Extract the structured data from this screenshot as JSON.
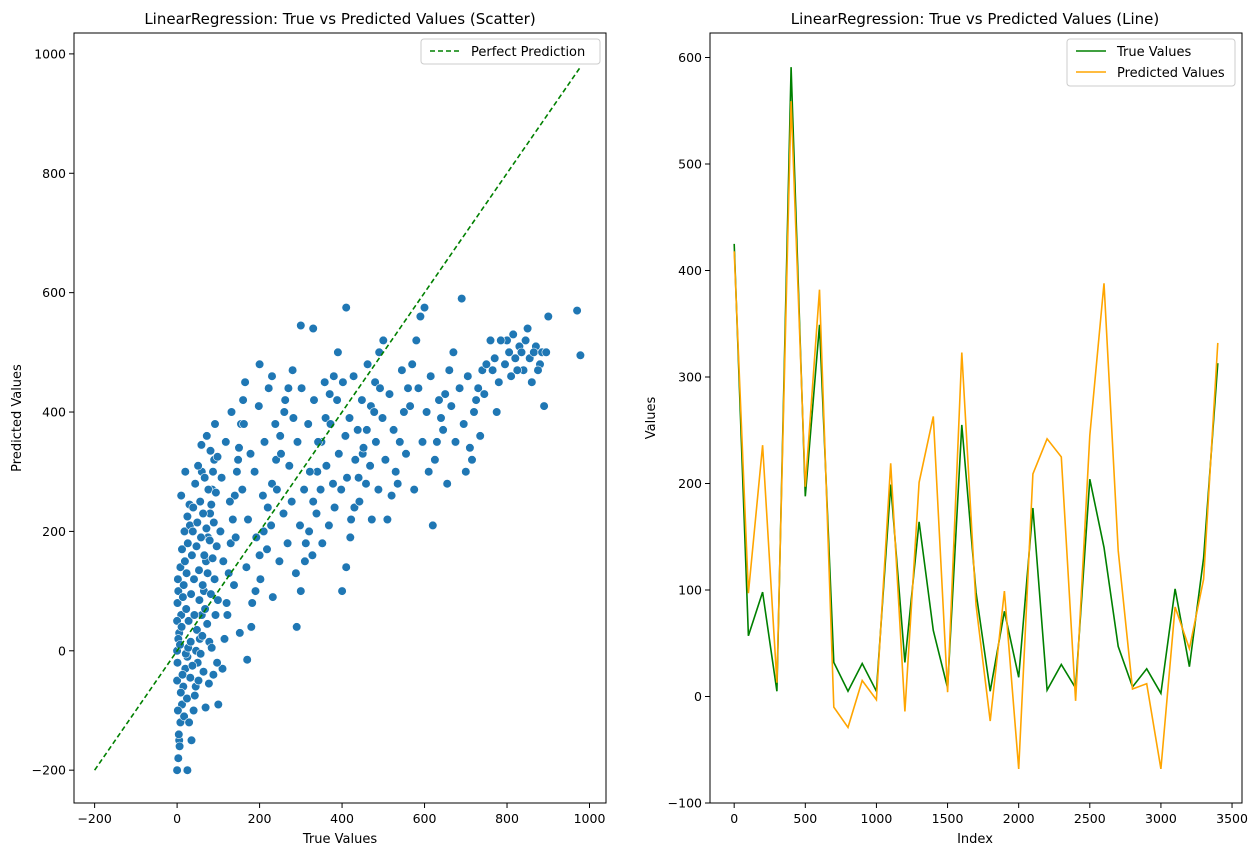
{
  "chart_data": [
    {
      "type": "scatter",
      "title": "LinearRegression: True vs Predicted Values (Scatter)",
      "xlabel": "True Values",
      "ylabel": "Predicted Values",
      "xlim": [
        -250,
        1040
      ],
      "ylim": [
        -255,
        1035
      ],
      "xticks": [
        -200,
        0,
        200,
        400,
        600,
        800,
        1000
      ],
      "yticks": [
        -200,
        0,
        200,
        400,
        600,
        800,
        1000
      ],
      "legend_position": "top-right",
      "grid": false,
      "point_color": "#1f77b4",
      "reference_line": {
        "name": "Perfect Prediction",
        "color": "#008000",
        "style": "dashed",
        "x": [
          -200,
          977
        ],
        "y": [
          -200,
          977
        ]
      },
      "points": [
        [
          0,
          -200
        ],
        [
          3,
          -180
        ],
        [
          5,
          -150
        ],
        [
          8,
          -120
        ],
        [
          12,
          -90
        ],
        [
          15,
          -60
        ],
        [
          20,
          -30
        ],
        [
          25,
          -10
        ],
        [
          5,
          30
        ],
        [
          10,
          60
        ],
        [
          3,
          100
        ],
        [
          8,
          140
        ],
        [
          12,
          170
        ],
        [
          18,
          200
        ],
        [
          25,
          225
        ],
        [
          30,
          245
        ],
        [
          10,
          260
        ],
        [
          20,
          300
        ],
        [
          25,
          -200
        ],
        [
          35,
          -150
        ],
        [
          40,
          -100
        ],
        [
          45,
          -60
        ],
        [
          50,
          -20
        ],
        [
          55,
          20
        ],
        [
          60,
          60
        ],
        [
          65,
          100
        ],
        [
          70,
          150
        ],
        [
          75,
          190
        ],
        [
          80,
          230
        ],
        [
          85,
          270
        ],
        [
          60,
          300
        ],
        [
          90,
          320
        ],
        [
          100,
          -90
        ],
        [
          110,
          -30
        ],
        [
          115,
          20
        ],
        [
          120,
          80
        ],
        [
          125,
          130
        ],
        [
          130,
          180
        ],
        [
          135,
          220
        ],
        [
          140,
          260
        ],
        [
          145,
          300
        ],
        [
          150,
          340
        ],
        [
          155,
          380
        ],
        [
          160,
          420
        ],
        [
          165,
          450
        ],
        [
          170,
          -15
        ],
        [
          180,
          40
        ],
        [
          190,
          100
        ],
        [
          200,
          160
        ],
        [
          210,
          200
        ],
        [
          220,
          240
        ],
        [
          230,
          280
        ],
        [
          240,
          320
        ],
        [
          250,
          360
        ],
        [
          260,
          400
        ],
        [
          270,
          440
        ],
        [
          280,
          470
        ],
        [
          200,
          480
        ],
        [
          230,
          460
        ],
        [
          290,
          40
        ],
        [
          300,
          100
        ],
        [
          310,
          150
        ],
        [
          320,
          200
        ],
        [
          330,
          250
        ],
        [
          340,
          300
        ],
        [
          350,
          350
        ],
        [
          360,
          390
        ],
        [
          370,
          430
        ],
        [
          380,
          460
        ],
        [
          390,
          500
        ],
        [
          300,
          545
        ],
        [
          330,
          540
        ],
        [
          410,
          575
        ],
        [
          400,
          100
        ],
        [
          410,
          140
        ],
        [
          420,
          190
        ],
        [
          430,
          240
        ],
        [
          440,
          290
        ],
        [
          450,
          330
        ],
        [
          460,
          370
        ],
        [
          470,
          410
        ],
        [
          480,
          450
        ],
        [
          490,
          500
        ],
        [
          500,
          520
        ],
        [
          510,
          220
        ],
        [
          520,
          260
        ],
        [
          530,
          300
        ],
        [
          540,
          350
        ],
        [
          550,
          400
        ],
        [
          560,
          440
        ],
        [
          570,
          480
        ],
        [
          580,
          520
        ],
        [
          590,
          560
        ],
        [
          600,
          575
        ],
        [
          610,
          300
        ],
        [
          620,
          210
        ],
        [
          630,
          350
        ],
        [
          640,
          390
        ],
        [
          650,
          430
        ],
        [
          660,
          470
        ],
        [
          670,
          500
        ],
        [
          690,
          590
        ],
        [
          700,
          300
        ],
        [
          710,
          340
        ],
        [
          720,
          400
        ],
        [
          730,
          440
        ],
        [
          740,
          470
        ],
        [
          750,
          480
        ],
        [
          760,
          520
        ],
        [
          770,
          490
        ],
        [
          780,
          450
        ],
        [
          800,
          520
        ],
        [
          810,
          460
        ],
        [
          820,
          490
        ],
        [
          830,
          510
        ],
        [
          840,
          470
        ],
        [
          850,
          540
        ],
        [
          860,
          450
        ],
        [
          870,
          510
        ],
        [
          880,
          480
        ],
        [
          890,
          410
        ],
        [
          900,
          560
        ],
        [
          970,
          570
        ],
        [
          978,
          495
        ],
        [
          0,
          0
        ],
        [
          0,
          50
        ],
        [
          0,
          -50
        ],
        [
          2,
          -100
        ],
        [
          2,
          120
        ],
        [
          1,
          80
        ],
        [
          1,
          -20
        ],
        [
          3,
          20
        ],
        [
          4,
          -140
        ],
        [
          6,
          -160
        ],
        [
          7,
          10
        ],
        [
          9,
          -70
        ],
        [
          11,
          40
        ],
        [
          13,
          -40
        ],
        [
          14,
          90
        ],
        [
          16,
          110
        ],
        [
          17,
          -110
        ],
        [
          19,
          150
        ],
        [
          21,
          -5
        ],
        [
          22,
          70
        ],
        [
          23,
          130
        ],
        [
          24,
          -80
        ],
        [
          26,
          180
        ],
        [
          27,
          5
        ],
        [
          28,
          50
        ],
        [
          29,
          -120
        ],
        [
          31,
          210
        ],
        [
          32,
          -45
        ],
        [
          33,
          15
        ],
        [
          34,
          95
        ],
        [
          36,
          160
        ],
        [
          37,
          -25
        ],
        [
          38,
          200
        ],
        [
          39,
          240
        ],
        [
          41,
          120
        ],
        [
          42,
          60
        ],
        [
          43,
          -75
        ],
        [
          44,
          280
        ],
        [
          46,
          0
        ],
        [
          47,
          175
        ],
        [
          48,
          35
        ],
        [
          49,
          215
        ],
        [
          51,
          310
        ],
        [
          52,
          -50
        ],
        [
          53,
          135
        ],
        [
          54,
          85
        ],
        [
          56,
          250
        ],
        [
          57,
          -5
        ],
        [
          58,
          190
        ],
        [
          59,
          345
        ],
        [
          61,
          25
        ],
        [
          62,
          110
        ],
        [
          63,
          230
        ],
        [
          64,
          -35
        ],
        [
          66,
          160
        ],
        [
          67,
          290
        ],
        [
          68,
          70
        ],
        [
          69,
          -95
        ],
        [
          71,
          205
        ],
        [
          72,
          360
        ],
        [
          73,
          45
        ],
        [
          74,
          130
        ],
        [
          76,
          270
        ],
        [
          77,
          -55
        ],
        [
          78,
          15
        ],
        [
          79,
          185
        ],
        [
          81,
          335
        ],
        [
          82,
          95
        ],
        [
          83,
          245
        ],
        [
          84,
          5
        ],
        [
          86,
          155
        ],
        [
          87,
          300
        ],
        [
          88,
          -40
        ],
        [
          89,
          215
        ],
        [
          91,
          120
        ],
        [
          92,
          380
        ],
        [
          93,
          60
        ],
        [
          94,
          265
        ],
        [
          96,
          175
        ],
        [
          97,
          -20
        ],
        [
          98,
          325
        ],
        [
          99,
          85
        ],
        [
          105,
          200
        ],
        [
          108,
          290
        ],
        [
          112,
          150
        ],
        [
          118,
          350
        ],
        [
          122,
          60
        ],
        [
          128,
          250
        ],
        [
          132,
          400
        ],
        [
          138,
          110
        ],
        [
          142,
          190
        ],
        [
          148,
          320
        ],
        [
          152,
          30
        ],
        [
          158,
          270
        ],
        [
          162,
          380
        ],
        [
          168,
          140
        ],
        [
          172,
          220
        ],
        [
          178,
          330
        ],
        [
          182,
          80
        ],
        [
          188,
          300
        ],
        [
          192,
          190
        ],
        [
          198,
          410
        ],
        [
          202,
          120
        ],
        [
          208,
          260
        ],
        [
          212,
          350
        ],
        [
          218,
          170
        ],
        [
          222,
          440
        ],
        [
          228,
          210
        ],
        [
          232,
          90
        ],
        [
          238,
          380
        ],
        [
          242,
          270
        ],
        [
          248,
          150
        ],
        [
          252,
          330
        ],
        [
          258,
          230
        ],
        [
          262,
          420
        ],
        [
          268,
          180
        ],
        [
          272,
          310
        ],
        [
          278,
          250
        ],
        [
          282,
          390
        ],
        [
          288,
          130
        ],
        [
          292,
          350
        ],
        [
          298,
          210
        ],
        [
          302,
          440
        ],
        [
          308,
          270
        ],
        [
          312,
          180
        ],
        [
          318,
          380
        ],
        [
          322,
          300
        ],
        [
          328,
          160
        ],
        [
          332,
          420
        ],
        [
          338,
          230
        ],
        [
          342,
          350
        ],
        [
          348,
          270
        ],
        [
          352,
          180
        ],
        [
          358,
          450
        ],
        [
          362,
          310
        ],
        [
          368,
          210
        ],
        [
          372,
          380
        ],
        [
          378,
          280
        ],
        [
          382,
          240
        ],
        [
          388,
          420
        ],
        [
          392,
          330
        ],
        [
          398,
          270
        ],
        [
          402,
          450
        ],
        [
          408,
          360
        ],
        [
          412,
          290
        ],
        [
          418,
          390
        ],
        [
          422,
          220
        ],
        [
          428,
          460
        ],
        [
          432,
          320
        ],
        [
          438,
          370
        ],
        [
          442,
          250
        ],
        [
          448,
          420
        ],
        [
          452,
          340
        ],
        [
          458,
          280
        ],
        [
          462,
          480
        ],
        [
          468,
          310
        ],
        [
          472,
          220
        ],
        [
          478,
          400
        ],
        [
          482,
          350
        ],
        [
          488,
          270
        ],
        [
          492,
          440
        ],
        [
          498,
          390
        ],
        [
          505,
          320
        ],
        [
          515,
          430
        ],
        [
          525,
          370
        ],
        [
          535,
          280
        ],
        [
          545,
          470
        ],
        [
          555,
          330
        ],
        [
          565,
          410
        ],
        [
          575,
          270
        ],
        [
          585,
          440
        ],
        [
          595,
          350
        ],
        [
          605,
          400
        ],
        [
          615,
          460
        ],
        [
          625,
          320
        ],
        [
          635,
          420
        ],
        [
          645,
          370
        ],
        [
          655,
          280
        ],
        [
          665,
          410
        ],
        [
          675,
          350
        ],
        [
          685,
          440
        ],
        [
          695,
          380
        ],
        [
          705,
          460
        ],
        [
          715,
          320
        ],
        [
          725,
          420
        ],
        [
          735,
          360
        ],
        [
          745,
          430
        ],
        [
          765,
          470
        ],
        [
          775,
          400
        ],
        [
          785,
          520
        ],
        [
          795,
          480
        ],
        [
          805,
          500
        ],
        [
          815,
          530
        ],
        [
          825,
          470
        ],
        [
          835,
          500
        ],
        [
          845,
          520
        ],
        [
          855,
          490
        ],
        [
          865,
          500
        ],
        [
          875,
          470
        ],
        [
          885,
          500
        ],
        [
          895,
          500
        ]
      ]
    },
    {
      "type": "line",
      "title": "LinearRegression: True vs Predicted Values (Line)",
      "xlabel": "Index",
      "ylabel": "Values",
      "xlim": [
        -170,
        3570
      ],
      "ylim": [
        -100,
        623
      ],
      "xticks": [
        0,
        500,
        1000,
        1500,
        2000,
        2500,
        3000,
        3500
      ],
      "yticks": [
        -100,
        0,
        100,
        200,
        300,
        400,
        500,
        600
      ],
      "legend_position": "top-right",
      "grid": false,
      "x": [
        0,
        100,
        200,
        300,
        400,
        500,
        600,
        700,
        800,
        900,
        1000,
        1100,
        1200,
        1300,
        1400,
        1500,
        1600,
        1700,
        1800,
        1900,
        2000,
        2100,
        2200,
        2300,
        2400,
        2500,
        2600,
        2700,
        2800,
        2900,
        3000,
        3100,
        3200,
        3300,
        3400
      ],
      "series": [
        {
          "name": "True Values",
          "color": "#008000",
          "values": [
            425,
            57,
            98,
            5,
            591,
            188,
            349,
            32,
            5,
            31,
            5,
            199,
            32,
            164,
            62,
            8,
            255,
            98,
            5,
            80,
            18,
            177,
            6,
            30,
            8,
            204,
            140,
            47,
            9,
            26,
            3,
            101,
            28,
            130,
            313
          ]
        },
        {
          "name": "Predicted Values",
          "color": "#ffa500",
          "values": [
            418,
            97,
            236,
            13,
            559,
            197,
            382,
            -10,
            -29,
            15,
            -3,
            219,
            -14,
            201,
            263,
            4,
            323,
            86,
            -23,
            99,
            -68,
            209,
            242,
            225,
            -4,
            245,
            388,
            137,
            7,
            12,
            -68,
            84,
            45,
            110,
            332
          ]
        }
      ]
    }
  ]
}
